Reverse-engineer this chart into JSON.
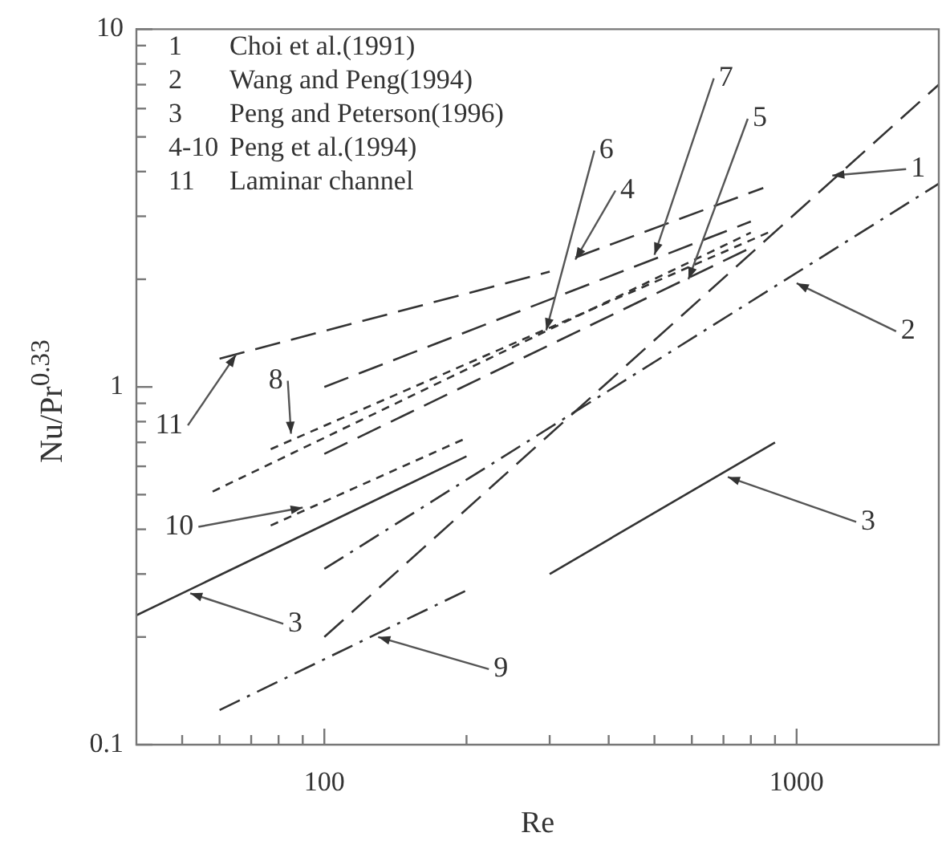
{
  "chart_data": {
    "type": "line",
    "xlabel": "Re",
    "ylabel": "Nu/Pr$^{0.33}$",
    "log": "xy",
    "grid": false,
    "legend": false,
    "marker": "none",
    "xlim": [
      40,
      2000
    ],
    "ylim": [
      0.1,
      10
    ],
    "xticks": [
      {
        "value": 50,
        "label": null
      },
      {
        "value": 60,
        "label": null
      },
      {
        "value": 70,
        "label": null
      },
      {
        "value": 80,
        "label": null
      },
      {
        "value": 90,
        "label": null
      },
      100,
      {
        "value": 200,
        "label": null
      },
      {
        "value": 300,
        "label": null
      },
      {
        "value": 400,
        "label": null
      },
      {
        "value": 500,
        "label": null
      },
      {
        "value": 600,
        "label": null
      },
      {
        "value": 700,
        "label": null
      },
      {
        "value": 800,
        "label": null
      },
      {
        "value": 900,
        "label": null
      },
      1000
    ],
    "yticks": [
      0.1,
      {
        "value": 0.2,
        "label": null
      },
      {
        "value": 0.3,
        "label": null
      },
      {
        "value": 0.4,
        "label": null
      },
      {
        "value": 0.5,
        "label": null
      },
      {
        "value": 0.6,
        "label": null
      },
      {
        "value": 0.7,
        "label": null
      },
      {
        "value": 0.8,
        "label": null
      },
      {
        "value": 0.9,
        "label": null
      },
      1,
      {
        "value": 2,
        "label": null
      },
      {
        "value": 3,
        "label": null
      },
      {
        "value": 4,
        "label": null
      },
      {
        "value": 5,
        "label": null
      },
      {
        "value": 6,
        "label": null
      },
      {
        "value": 7,
        "label": null
      },
      {
        "value": 8,
        "label": null
      },
      {
        "value": 9,
        "label": null
      },
      10
    ],
    "series": [
      {
        "color": "#333333",
        "line_style": "dashed",
        "x": [
          100,
          2000
        ],
        "values": [
          0.2,
          7
        ]
      },
      {
        "color": "#333333",
        "line_style": "dashdot",
        "x": [
          100,
          2000
        ],
        "values": [
          0.31,
          3.7
        ]
      },
      {
        "color": "#333333",
        "line_style": "solid",
        "x": [
          40,
          200,
          250,
          300,
          900
        ],
        "values": [
          0.23,
          0.64,
          null,
          0.3,
          0.7
        ]
      },
      {
        "color": "#333333",
        "line_style": "dashed",
        "x": [
          340,
          850
        ],
        "values": [
          2.3,
          3.6
        ]
      },
      {
        "color": "#333333",
        "line_style": "dashed",
        "x": [
          100,
          800
        ],
        "values": [
          0.65,
          2.45
        ]
      },
      {
        "color": "#333333",
        "line_style": "dotted",
        "x": [
          58,
          800
        ],
        "values": [
          0.51,
          2.7
        ]
      },
      {
        "color": "#333333",
        "line_style": "dashed",
        "x": [
          100,
          800
        ],
        "values": [
          1.0,
          2.9
        ]
      },
      {
        "color": "#333333",
        "line_style": "dotted",
        "x": [
          77,
          870
        ],
        "values": [
          0.67,
          2.7
        ]
      },
      {
        "color": "#333333",
        "line_style": "dashdot",
        "x": [
          60,
          200
        ],
        "values": [
          0.125,
          0.27
        ]
      },
      {
        "color": "#333333",
        "line_style": "dotted",
        "x": [
          77,
          200
        ],
        "values": [
          0.41,
          0.72
        ]
      },
      {
        "color": "#333333",
        "line_style": "dashed",
        "x": [
          60,
          300
        ],
        "values": [
          1.2,
          2.1
        ]
      }
    ],
    "annotations": [
      "1 Choi et al.(1991)",
      "2 Wang and Peng(1994)",
      "3 Peng and Peterson(1996)",
      "4-10 Peng et al.(1994)",
      "11 Laminar channel",
      {
        "text": "1",
        "x": 1190,
        "y": 3.9
      },
      {
        "text": "2",
        "x": 1000,
        "y": 1.95
      },
      {
        "text": "3",
        "x": 52,
        "y": 0.265
      },
      {
        "text": "3",
        "x": 715,
        "y": 0.56
      },
      {
        "text": "4",
        "x": 340,
        "y": 2.27
      },
      {
        "text": "5",
        "x": 590,
        "y": 2.0
      },
      {
        "text": "6",
        "x": 295,
        "y": 1.44
      },
      {
        "text": "7",
        "x": 500,
        "y": 2.34
      },
      {
        "text": "8",
        "x": 85,
        "y": 0.74
      },
      {
        "text": "9",
        "x": 130,
        "y": 0.2
      },
      {
        "text": "10",
        "x": 90,
        "y": 0.46
      },
      {
        "text": "11",
        "x": 65,
        "y": 1.23
      }
    ]
  }
}
